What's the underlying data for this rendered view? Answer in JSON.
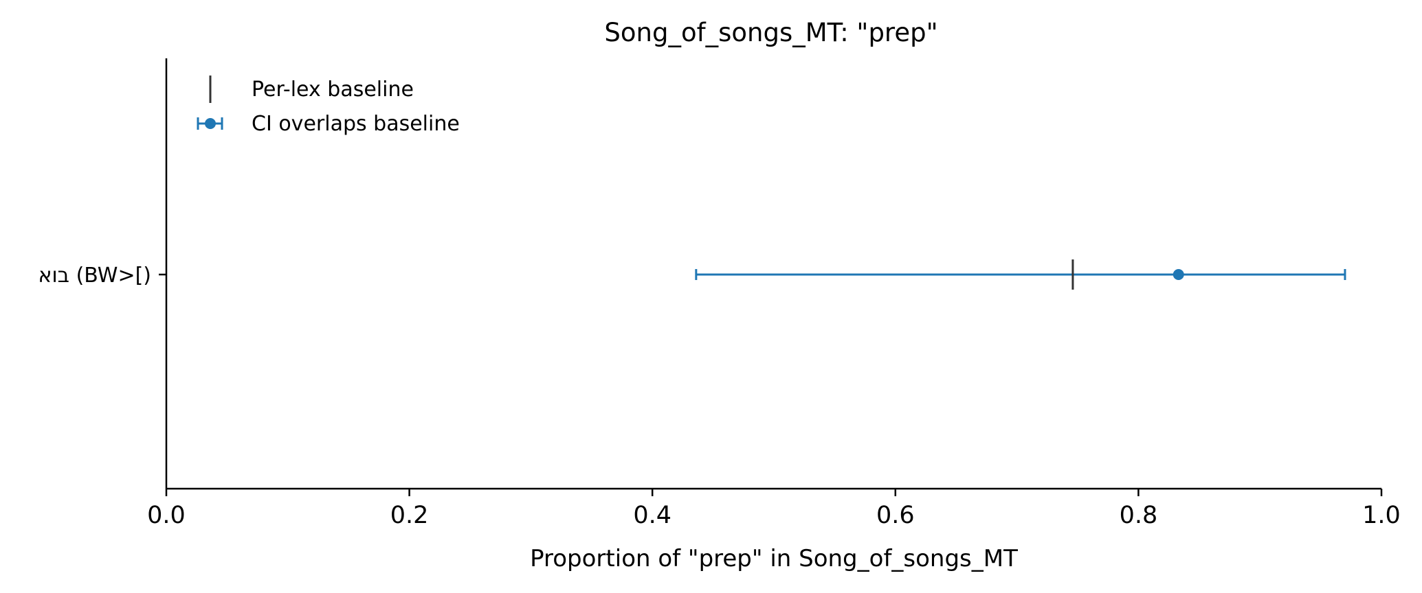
{
  "chart_data": {
    "type": "errorbar",
    "title": "Song_of_songs_MT: \"prep\"",
    "xlabel": "Proportion of \"prep\" in Song_of_songs_MT",
    "ylabel": "",
    "xlim": [
      0.0,
      1.0
    ],
    "xticks": [
      "0.0",
      "0.2",
      "0.4",
      "0.6",
      "0.8",
      "1.0"
    ],
    "grid": false,
    "legend_position": "top-left",
    "legend": [
      {
        "label": "Per-lex baseline",
        "marker": "vertical-line",
        "color": "#333333"
      },
      {
        "label": "CI overlaps baseline",
        "marker": "point-with-errorbar",
        "color": "#1f77b4"
      }
    ],
    "categories": [
      "בוא (BW>[)"
    ],
    "points": [
      {
        "category": "בוא (BW>[)",
        "value": 0.833,
        "ci_low": 0.436,
        "ci_high": 0.97,
        "baseline": 0.746
      }
    ]
  }
}
